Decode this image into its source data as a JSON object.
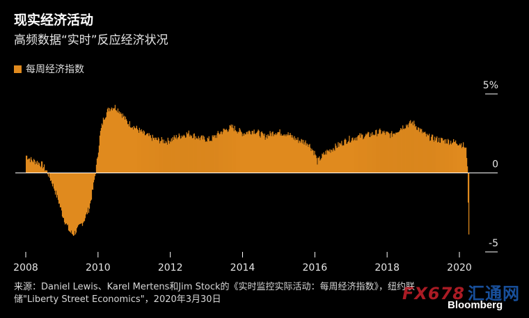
{
  "header": {
    "title": "现实经济活动",
    "subtitle": "高频数据“实时”反应经济状况"
  },
  "colors": {
    "bar": "#e08a1e",
    "axis": "#ffffff",
    "background": "#000000"
  },
  "chart_data": {
    "type": "bar",
    "series": [
      {
        "name": "每周经济指数"
      }
    ],
    "xlim": [
      2008,
      2020.35
    ],
    "ylim": [
      -5,
      5
    ],
    "x_ticks": [
      "2008",
      "2010",
      "2012",
      "2014",
      "2016",
      "2018",
      "2020"
    ],
    "y_ticks": [
      "5%",
      "0",
      "-5"
    ],
    "y_tick_values": [
      5,
      0,
      -5
    ],
    "legend_position": "top-left",
    "grid": false,
    "anchors": [
      [
        2008.0,
        1.1
      ],
      [
        2008.15,
        0.8
      ],
      [
        2008.3,
        0.7
      ],
      [
        2008.45,
        0.5
      ],
      [
        2008.6,
        0.0
      ],
      [
        2008.75,
        -0.8
      ],
      [
        2008.9,
        -1.8
      ],
      [
        2009.0,
        -2.6
      ],
      [
        2009.1,
        -3.2
      ],
      [
        2009.2,
        -3.7
      ],
      [
        2009.3,
        -3.9
      ],
      [
        2009.45,
        -3.5
      ],
      [
        2009.6,
        -3.0
      ],
      [
        2009.75,
        -2.2
      ],
      [
        2009.85,
        -1.0
      ],
      [
        2009.95,
        0.5
      ],
      [
        2010.05,
        2.5
      ],
      [
        2010.15,
        3.5
      ],
      [
        2010.3,
        4.1
      ],
      [
        2010.45,
        4.2
      ],
      [
        2010.6,
        3.9
      ],
      [
        2010.8,
        3.2
      ],
      [
        2011.0,
        2.9
      ],
      [
        2011.3,
        2.4
      ],
      [
        2011.6,
        2.1
      ],
      [
        2011.9,
        2.0
      ],
      [
        2012.2,
        2.3
      ],
      [
        2012.5,
        2.5
      ],
      [
        2012.8,
        2.2
      ],
      [
        2013.1,
        2.1
      ],
      [
        2013.4,
        2.6
      ],
      [
        2013.7,
        2.9
      ],
      [
        2014.0,
        2.5
      ],
      [
        2014.3,
        2.7
      ],
      [
        2014.6,
        2.3
      ],
      [
        2014.9,
        2.6
      ],
      [
        2015.2,
        2.5
      ],
      [
        2015.5,
        2.1
      ],
      [
        2015.8,
        1.9
      ],
      [
        2016.0,
        1.2
      ],
      [
        2016.05,
        0.7
      ],
      [
        2016.3,
        1.3
      ],
      [
        2016.6,
        1.7
      ],
      [
        2016.9,
        2.1
      ],
      [
        2017.2,
        2.3
      ],
      [
        2017.5,
        2.4
      ],
      [
        2017.8,
        2.6
      ],
      [
        2018.1,
        2.4
      ],
      [
        2018.4,
        2.9
      ],
      [
        2018.7,
        3.2
      ],
      [
        2018.9,
        2.7
      ],
      [
        2019.1,
        2.3
      ],
      [
        2019.4,
        2.1
      ],
      [
        2019.7,
        2.0
      ],
      [
        2020.0,
        1.9
      ],
      [
        2020.12,
        1.7
      ],
      [
        2020.18,
        1.4
      ],
      [
        2020.21,
        0.6
      ],
      [
        2020.23,
        -1.8
      ],
      [
        2020.25,
        -3.9
      ]
    ]
  },
  "source": {
    "text": "来源：Daniel Lewis、Karel Mertens和Jim Stock的《实时监控实际活动：每周经济指数》，纽约联储\"Liberty Street Economics\"，2020年3月30日"
  },
  "watermark": {
    "text": "FX678",
    "cn": "汇通网"
  },
  "brand": {
    "name": "Bloomberg"
  }
}
